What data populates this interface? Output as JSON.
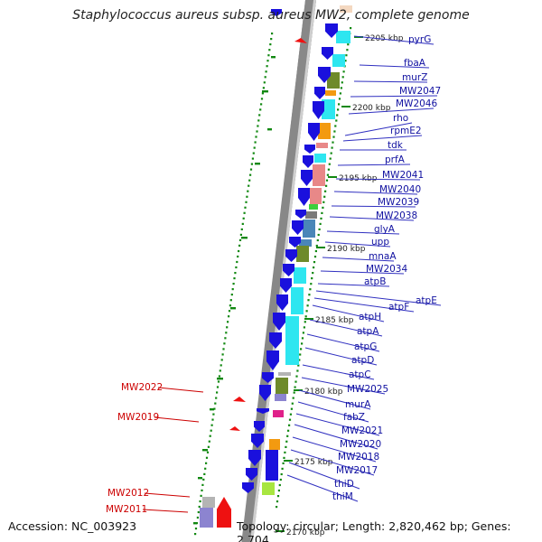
{
  "header": {
    "title": "Staphylococcus aureus subsp. aureus MW2, complete genome"
  },
  "footer": {
    "accession": "Accession: NC_003923",
    "summary": "Topology: circular; Length: 2,820,462 bp; Genes: 2,704"
  },
  "colors": {
    "forward_gene": "#1a10dd",
    "reverse_gene": "#ee1111",
    "forward_label": "#1010a0",
    "reverse_label": "#cc0000",
    "backbone": "#888888",
    "tick": "#118811",
    "cog_cyan": "#2ee6f0",
    "cog_salmon": "#e88888",
    "cog_olive": "#6e8a2a",
    "cog_orange": "#f39a10",
    "cog_steel": "#4a86b8",
    "cog_magenta": "#e0218a",
    "cog_lime": "#a8e640",
    "cog_lavender": "#8c84d0",
    "cog_grey": "#b4b4b4"
  },
  "scale_labels": [
    "2205 kbp",
    "2200 kbp",
    "2195 kbp",
    "2190 kbp",
    "2185 kbp",
    "2180 kbp",
    "2175 kbp",
    "2170 kbp"
  ],
  "forward_genes": [
    "pyrG",
    "fbaA",
    "murZ",
    "MW2047",
    "MW2046",
    "rho",
    "rpmE2",
    "tdk",
    "prfA",
    "MW2041",
    "MW2040",
    "MW2039",
    "MW2038",
    "glyA",
    "upp",
    "mnaA",
    "MW2034",
    "atpB",
    "atpE",
    "atpF",
    "atpH",
    "atpA",
    "atpG",
    "atpD",
    "atpC",
    "MW2025",
    "murA",
    "fabZ",
    "MW2021",
    "MW2020",
    "MW2018",
    "MW2017",
    "thiD",
    "thiM"
  ],
  "reverse_genes": [
    "MW2022",
    "MW2019",
    "MW2012",
    "MW2011"
  ]
}
